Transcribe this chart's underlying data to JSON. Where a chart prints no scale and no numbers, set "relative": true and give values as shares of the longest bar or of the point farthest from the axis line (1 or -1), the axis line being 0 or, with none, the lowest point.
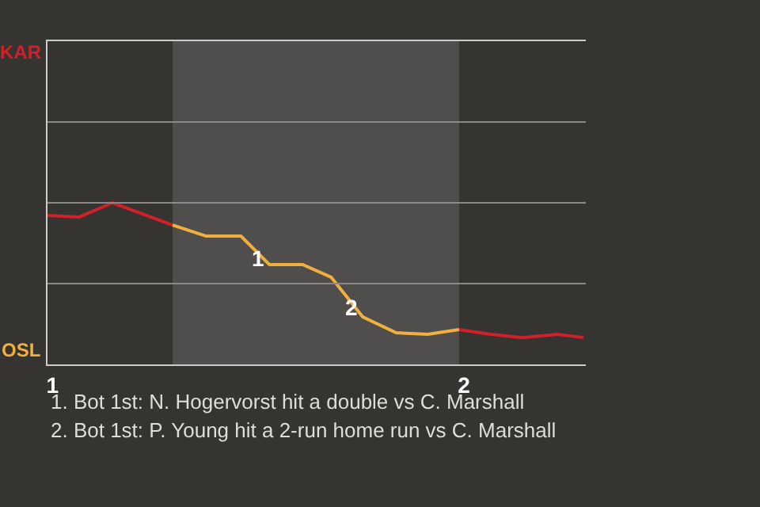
{
  "chart_data": {
    "type": "line",
    "xlim": [
      0.988,
      2.296
    ],
    "xticks": [
      1,
      2
    ],
    "relative": true,
    "marker": "none",
    "line_style": "solid",
    "series": [
      {
        "color": "#d0202a",
        "x": [
          0.988,
          1.065,
          1.146,
          1.292,
          1.65,
          1.988,
          2.065,
          2.142,
          2.227,
          2.29
        ],
        "values": [
          0.922,
          0.912,
          1,
          0.862,
          null,
          0.216,
          0.186,
          0.166,
          0.186,
          0.166
        ]
      },
      {
        "color": "#f0b040",
        "x": [
          1.292,
          1.373,
          1.458,
          1.527,
          1.608,
          1.677,
          1.754,
          1.835,
          1.912,
          1.988
        ],
        "values": [
          0.862,
          0.794,
          0.794,
          0.618,
          0.618,
          0.54,
          0.294,
          0.196,
          0.186,
          0.216
        ]
      }
    ],
    "ref_lines": [
      {
        "axis": "y",
        "value": 0.5,
        "color": "#888888"
      },
      {
        "axis": "y",
        "value": 1,
        "color": "#888888"
      },
      {
        "axis": "y",
        "value": 1.5,
        "color": "#888888"
      }
    ],
    "bands": [
      {
        "axis": "x",
        "from": 1.292,
        "to": 1.988,
        "color": "#4f4e4c"
      }
    ],
    "annotations": [
      {
        "text": "1",
        "x": 1.5,
        "y": 0.66
      },
      {
        "text": "2",
        "x": 1.728,
        "y": 0.35
      },
      "KAR",
      "OSL",
      "1. Bot 1st: N. Hogervorst hit a double vs C. Marshall",
      "2. Bot 1st: P. Young hit a 2-run home run vs C. Marshall"
    ]
  }
}
